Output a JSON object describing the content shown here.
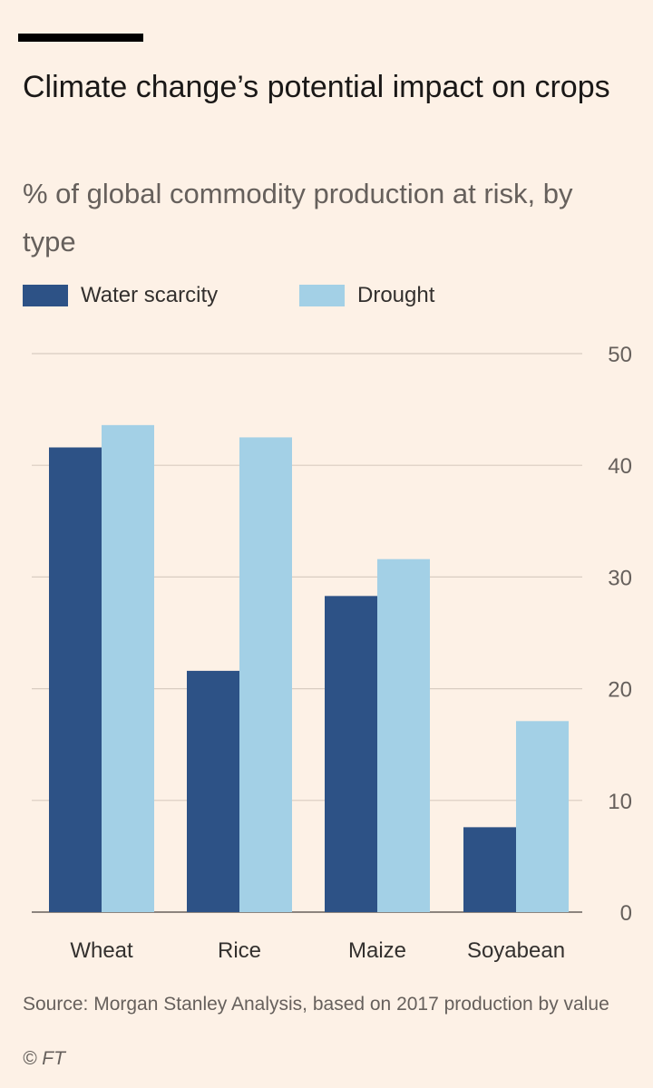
{
  "colors": {
    "background": "#fdf1e6",
    "water_scarcity": "#2d5286",
    "drought": "#a3d0e6",
    "grid": "#d9ccc1",
    "axis": "#66605c"
  },
  "chart_data": {
    "type": "bar",
    "title": "Climate change’s potential impact on crops",
    "subtitle": "% of global commodity production at risk, by type",
    "categories": [
      "Wheat",
      "Rice",
      "Maize",
      "Soyabean"
    ],
    "series": [
      {
        "name": "Water scarcity",
        "values": [
          41.6,
          21.6,
          28.3,
          7.6
        ]
      },
      {
        "name": "Drought",
        "values": [
          43.6,
          42.5,
          31.6,
          17.1
        ]
      }
    ],
    "ylim": [
      0,
      50
    ],
    "yticks": [
      "0",
      "10",
      "20",
      "30",
      "40",
      "50"
    ],
    "ytick_values": [
      0,
      10,
      20,
      30,
      40,
      50
    ],
    "xlabel": "",
    "ylabel": "",
    "y_axis_side": "right",
    "grid": true,
    "legend_position": "top-left"
  },
  "footer": {
    "source": "Source: Morgan Stanley Analysis, based on 2017 production by value",
    "copyright": "© FT"
  }
}
